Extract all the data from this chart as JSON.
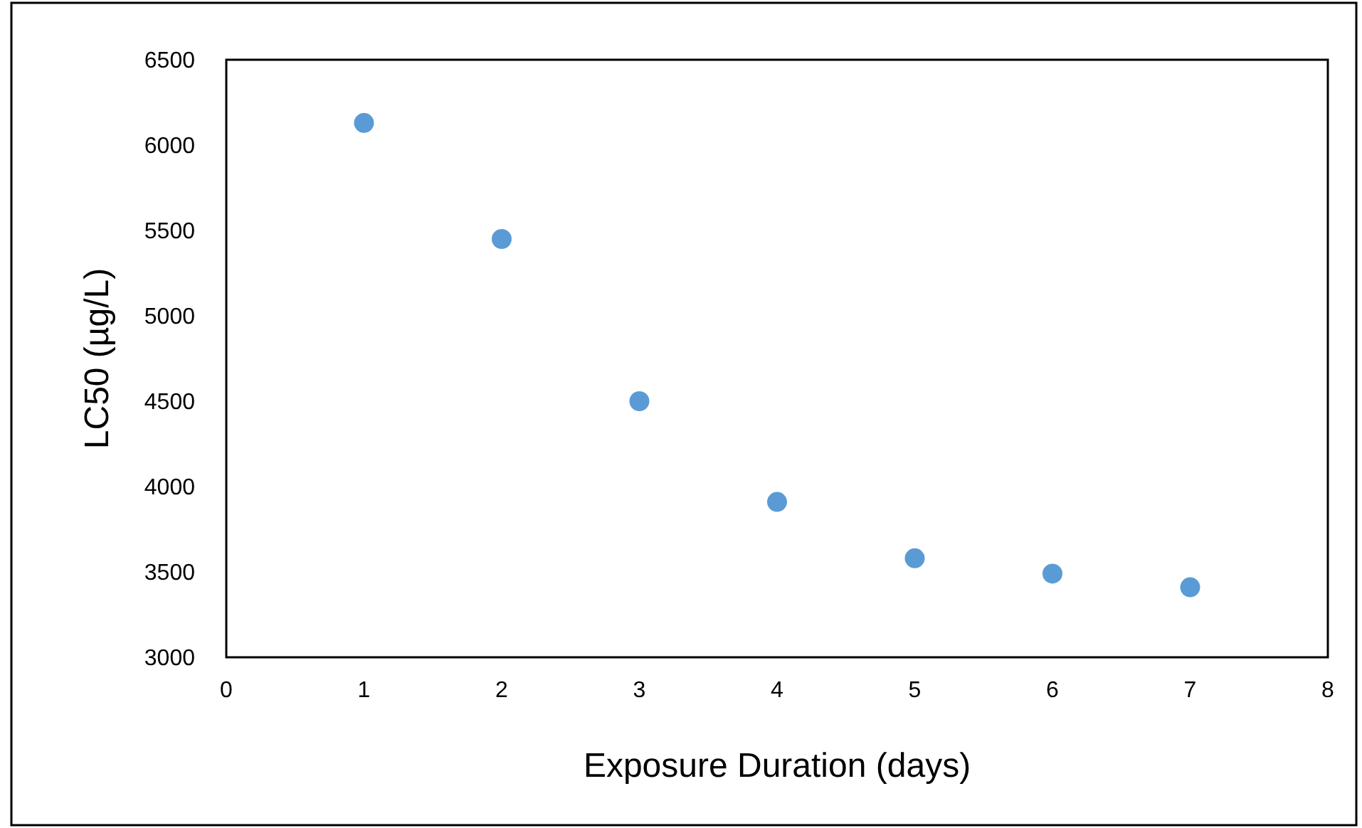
{
  "chart_data": {
    "type": "scatter",
    "xlabel": "Exposure Duration (days)",
    "ylabel": "LC50 (µg/L)",
    "x": [
      1,
      2,
      3,
      4,
      5,
      6,
      7
    ],
    "series": [
      {
        "color": "#5b9bd5",
        "values": [
          6130,
          5450,
          4500,
          3910,
          3580,
          3490,
          3410
        ]
      }
    ],
    "xlim": [
      0,
      8
    ],
    "xticks": [
      0,
      1,
      2,
      3,
      4,
      5,
      6,
      7,
      8
    ],
    "ylim": [
      3000,
      6500
    ],
    "yticks": [
      3000,
      3500,
      4000,
      4500,
      5000,
      5500,
      6000,
      6500
    ],
    "grid": false,
    "marker": "circle"
  }
}
